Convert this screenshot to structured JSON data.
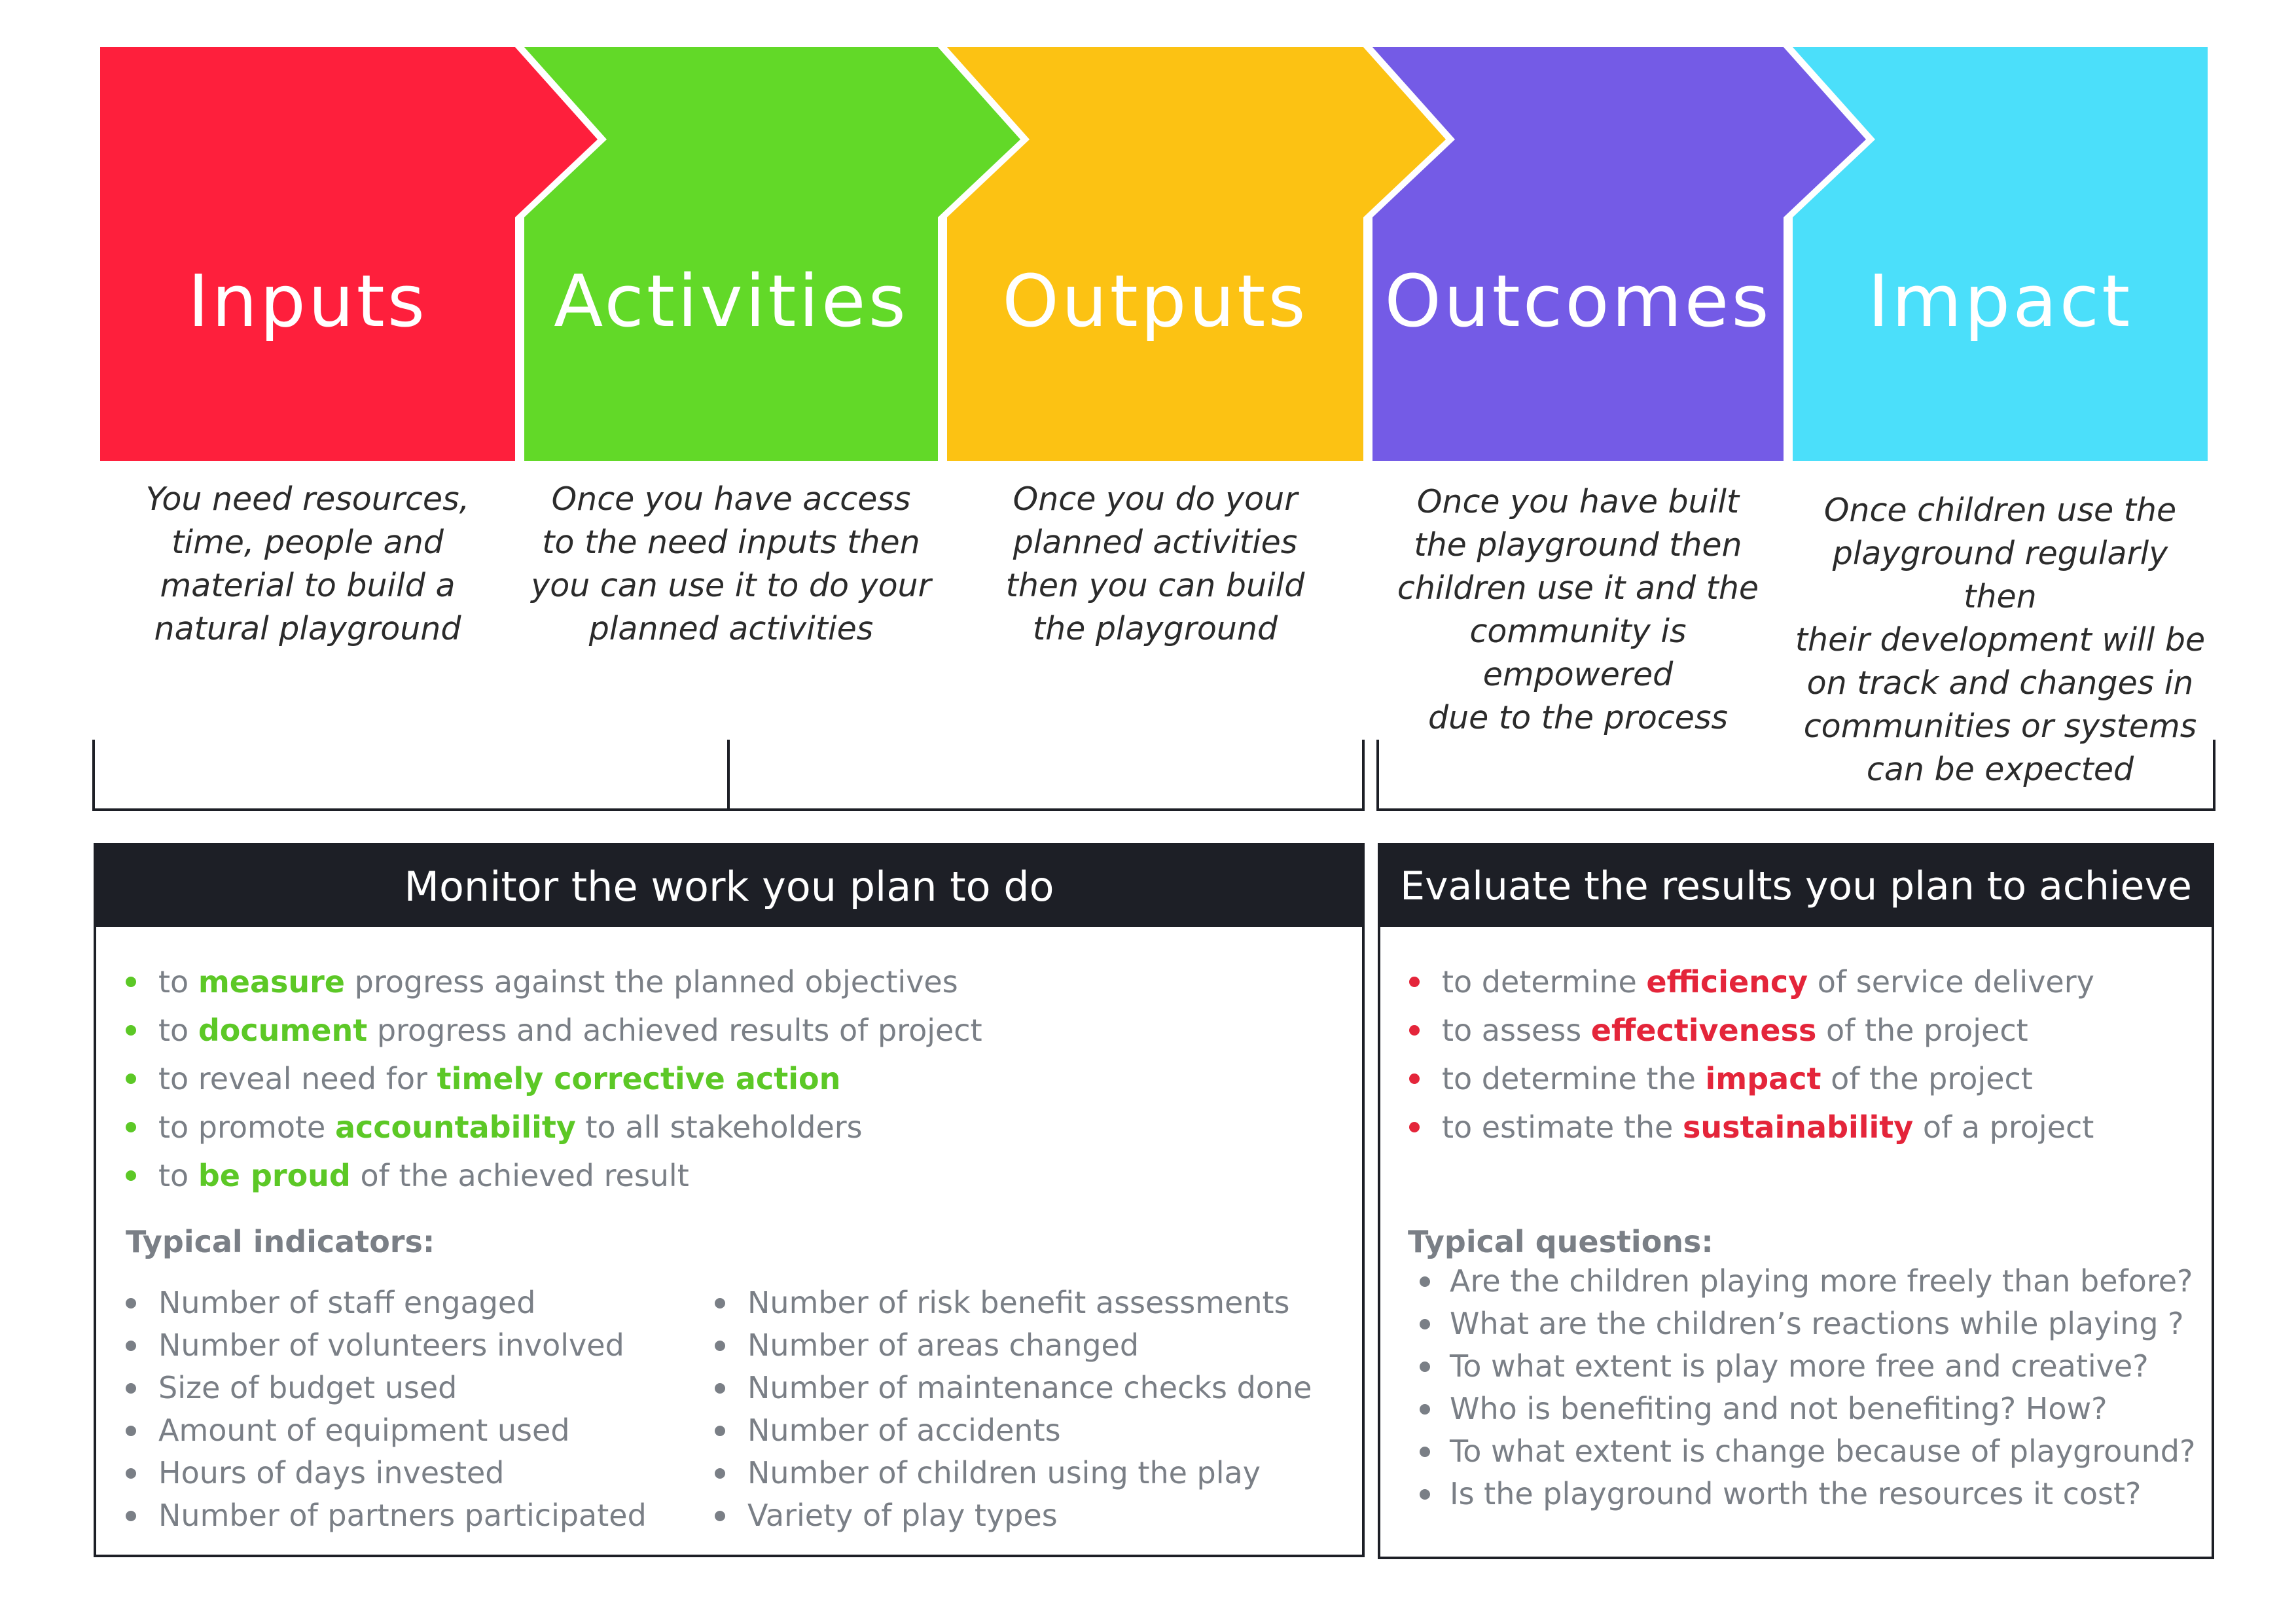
{
  "stages": [
    {
      "key": "inputs",
      "title": "Inputs",
      "color": "#fe1f3c",
      "desc": [
        "You need resources,",
        "time, people and",
        "material to build a",
        "natural playground"
      ]
    },
    {
      "key": "activities",
      "title": "Activities",
      "color": "#62d928",
      "desc": [
        "Once you have access",
        "to the need inputs then",
        "you can use it to do your",
        "planned activities"
      ]
    },
    {
      "key": "outputs",
      "title": "Outputs",
      "color": "#fcc213",
      "desc": [
        "Once you do your",
        "planned activities",
        "then you can build",
        "the playground"
      ]
    },
    {
      "key": "outcomes",
      "title": "Outcomes",
      "color": "#745be6",
      "desc": [
        "Once you have built",
        "the playground then",
        "children use it and the",
        "community is empowered",
        "due to the process"
      ]
    },
    {
      "key": "impact",
      "title": "Impact",
      "color": "#4bdffa",
      "desc": [
        "Once children use the",
        "playground regularly then",
        "their development will be",
        "on track and changes in",
        "communities or systems",
        "can be expected"
      ]
    }
  ],
  "monitor": {
    "title": "Monitor the work you plan to do",
    "accent": "#5cc826",
    "bullets": [
      {
        "pre": "to ",
        "hl": "measure",
        "post": " progress against the planned objectives"
      },
      {
        "pre": "to ",
        "hl": "document",
        "post": " progress and achieved results of project"
      },
      {
        "pre": "to reveal need for ",
        "hl": "timely corrective action",
        "post": ""
      },
      {
        "pre": "to promote ",
        "hl": "accountability",
        "post": " to all stakeholders"
      },
      {
        "pre": "to ",
        "hl": "be proud",
        "post": " of the achieved result"
      }
    ],
    "indicators_heading": "Typical indicators:",
    "indicators_left": [
      "Number of staff engaged",
      "Number of volunteers involved",
      "Size of budget used",
      "Amount of equipment used",
      "Hours of days invested",
      "Number of partners participated"
    ],
    "indicators_right": [
      "Number of risk benefit assessments",
      "Number of areas changed",
      "Number of maintenance checks done",
      "Number of accidents",
      "Number of children using the play",
      "Variety of play types"
    ]
  },
  "evaluate": {
    "title": "Evaluate the results you plan to achieve",
    "accent": "#e4253a",
    "bullets": [
      {
        "pre": "to determine ",
        "hl": "efficiency",
        "post": " of service delivery"
      },
      {
        "pre": "to assess ",
        "hl": "effectiveness",
        "post": " of the project"
      },
      {
        "pre": "to determine the ",
        "hl": "impact",
        "post": " of the project"
      },
      {
        "pre": "to estimate the ",
        "hl": "sustainability",
        "post": " of a project"
      }
    ],
    "questions_heading": "Typical questions:",
    "questions": [
      "Are the children playing more freely than before?",
      "What are the children’s reactions while playing ?",
      "To what extent is play more free and creative?",
      "Who is benefiting and not benefiting? How?",
      "To what extent is change because of playground?",
      "Is the playground worth the resources it cost?"
    ]
  }
}
